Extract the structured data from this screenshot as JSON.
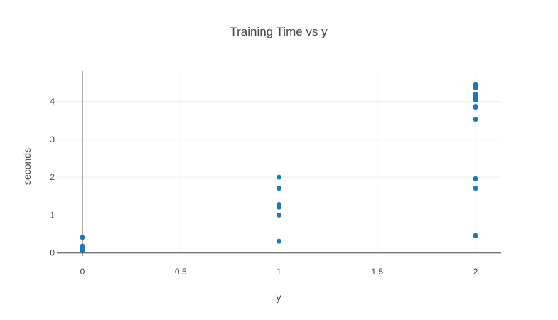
{
  "chart_data": {
    "type": "scatter",
    "title": "Training Time vs y",
    "xlabel": "y",
    "ylabel": "seconds",
    "xlim": [
      -0.13,
      2.13
    ],
    "ylim": [
      -0.08,
      4.8
    ],
    "xticks": [
      0,
      0.5,
      1,
      1.5,
      2
    ],
    "xtick_labels": [
      "0",
      "0.5",
      "1",
      "1.5",
      "2"
    ],
    "yticks": [
      0,
      1,
      2,
      3,
      4
    ],
    "ytick_labels": [
      "0",
      "1",
      "2",
      "3",
      "4"
    ],
    "grid": true,
    "color": "#1f77b4",
    "series": [
      {
        "points": [
          {
            "x": 0,
            "y": 0.41
          },
          {
            "x": 0,
            "y": 0.18
          },
          {
            "x": 0,
            "y": 0.16
          },
          {
            "x": 0,
            "y": 0.08
          },
          {
            "x": 0,
            "y": 0.07
          },
          {
            "x": 1,
            "y": 2.0
          },
          {
            "x": 1,
            "y": 1.71
          },
          {
            "x": 1,
            "y": 1.28
          },
          {
            "x": 1,
            "y": 1.21
          },
          {
            "x": 1,
            "y": 1.0
          },
          {
            "x": 1,
            "y": 0.31
          },
          {
            "x": 2,
            "y": 4.44
          },
          {
            "x": 2,
            "y": 4.41
          },
          {
            "x": 2,
            "y": 4.36
          },
          {
            "x": 2,
            "y": 4.19
          },
          {
            "x": 2,
            "y": 4.16
          },
          {
            "x": 2,
            "y": 4.12
          },
          {
            "x": 2,
            "y": 4.08
          },
          {
            "x": 2,
            "y": 4.04
          },
          {
            "x": 2,
            "y": 3.87
          },
          {
            "x": 2,
            "y": 3.85
          },
          {
            "x": 2,
            "y": 3.53
          },
          {
            "x": 2,
            "y": 1.96
          },
          {
            "x": 2,
            "y": 1.71
          },
          {
            "x": 2,
            "y": 0.46
          }
        ]
      }
    ]
  }
}
